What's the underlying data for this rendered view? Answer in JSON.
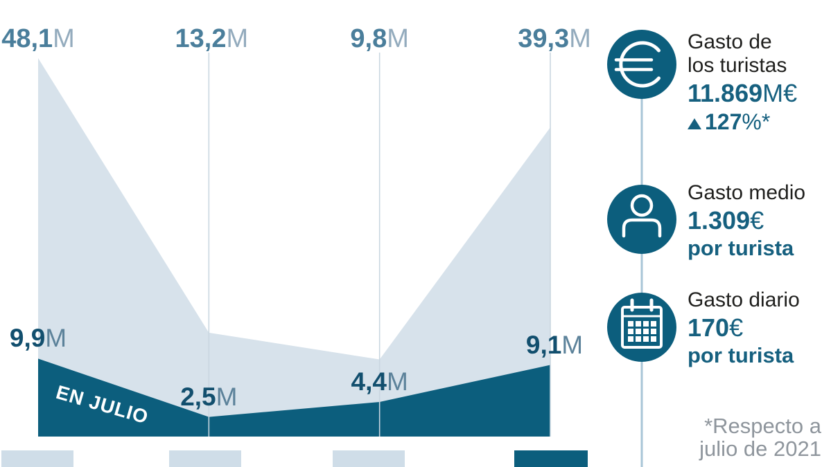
{
  "colors": {
    "dark_teal": "#0c5e7d",
    "light_area": "#d7e2eb",
    "footer_light": "#cfdde8",
    "top_label_num": "#4a7e9b",
    "top_label_unit": "#93abbd",
    "dark_label_num": "#124f6e",
    "dark_label_unit": "#5c829a",
    "panel_teal": "#16607f",
    "text_black": "#1f1f1d",
    "footnote_gray": "#8e959c",
    "gridline": "#c9d6e0",
    "connector_line": "#a8c6d7"
  },
  "chart_data": {
    "type": "area",
    "title": "",
    "xlabel": "",
    "ylabel": "",
    "ylim": [
      0,
      48.1
    ],
    "grid": "vertical",
    "legend": "none",
    "series": [
      {
        "name": "turistas-total",
        "color_key": "light_area",
        "values": [
          48.1,
          13.2,
          9.8,
          39.3
        ],
        "point_labels": [
          {
            "num": "48,1",
            "unit": "M"
          },
          {
            "num": "13,2",
            "unit": "M"
          },
          {
            "num": "9,8",
            "unit": "M"
          },
          {
            "num": "39,3",
            "unit": "M"
          }
        ]
      },
      {
        "name": "turistas-en-julio",
        "color_key": "dark_teal",
        "area_label": "EN JULIO",
        "values": [
          9.9,
          2.5,
          4.4,
          9.1
        ],
        "point_labels": [
          {
            "num": "9,9",
            "unit": "M"
          },
          {
            "num": "2,5",
            "unit": "M"
          },
          {
            "num": "4,4",
            "unit": "M"
          },
          {
            "num": "9,1",
            "unit": "M"
          }
        ]
      }
    ]
  },
  "footer_blocks": [
    "light",
    "light",
    "light",
    "dark"
  ],
  "stats": [
    {
      "icon": "euro-coin",
      "title_line1": "Gasto de",
      "title_line2": "los turistas",
      "value_num": "11.869",
      "value_unit": "M€",
      "change_direction": "up",
      "change_value": "127",
      "change_suffix": "%*"
    },
    {
      "icon": "person",
      "title_line1": "Gasto medio",
      "value_num": "1.309",
      "value_unit": "€",
      "subtext": "por turista"
    },
    {
      "icon": "calendar",
      "title_line1": "Gasto diario",
      "value_num": "170",
      "value_unit": "€",
      "subtext": "por turista"
    }
  ],
  "footnote": {
    "line1": "*Respecto a",
    "line2": "julio de 2021"
  }
}
